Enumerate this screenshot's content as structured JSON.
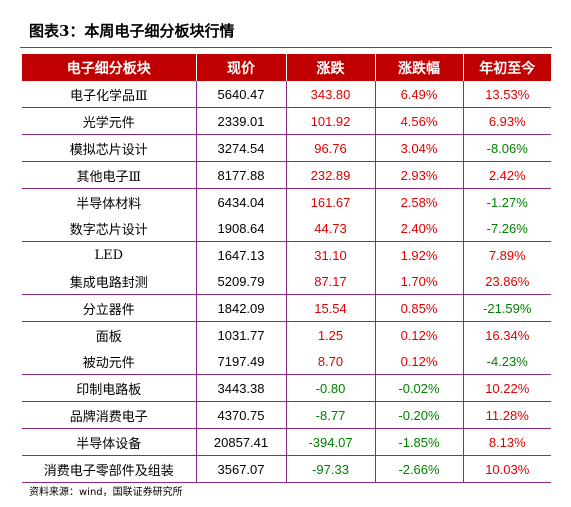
{
  "title": "图表3：本周电子细分板块行情",
  "table": {
    "headers": [
      "电子细分板块",
      "现价",
      "涨跌",
      "涨跌幅",
      "年初至今"
    ],
    "rows": [
      {
        "name": "电子化学品Ⅲ",
        "price": "5640.47",
        "change": "343.80",
        "pct": "6.49%",
        "ytd": "13.53%"
      },
      {
        "name": "光学元件",
        "price": "2339.01",
        "change": "101.92",
        "pct": "4.56%",
        "ytd": "6.93%"
      },
      {
        "name": "模拟芯片设计",
        "price": "3274.54",
        "change": "96.76",
        "pct": "3.04%",
        "ytd": "-8.06%"
      },
      {
        "name": "其他电子Ⅲ",
        "price": "8177.88",
        "change": "232.89",
        "pct": "2.93%",
        "ytd": "2.42%"
      },
      {
        "name": "半导体材料",
        "price": "6434.04",
        "change": "161.67",
        "pct": "2.58%",
        "ytd": "-1.27%"
      },
      {
        "name": "数字芯片设计",
        "price": "1908.64",
        "change": "44.73",
        "pct": "2.40%",
        "ytd": "-7.26%"
      },
      {
        "name": "LED",
        "price": "1647.13",
        "change": "31.10",
        "pct": "1.92%",
        "ytd": "7.89%"
      },
      {
        "name": "集成电路封测",
        "price": "5209.79",
        "change": "87.17",
        "pct": "1.70%",
        "ytd": "23.86%"
      },
      {
        "name": "分立器件",
        "price": "1842.09",
        "change": "15.54",
        "pct": "0.85%",
        "ytd": "-21.59%"
      },
      {
        "name": "面板",
        "price": "1031.77",
        "change": "1.25",
        "pct": "0.12%",
        "ytd": "16.34%"
      },
      {
        "name": "被动元件",
        "price": "7197.49",
        "change": "8.70",
        "pct": "0.12%",
        "ytd": "-4.23%"
      },
      {
        "name": "印制电路板",
        "price": "3443.38",
        "change": "-0.80",
        "pct": "-0.02%",
        "ytd": "10.22%"
      },
      {
        "name": "品牌消费电子",
        "price": "4370.75",
        "change": "-8.77",
        "pct": "-0.20%",
        "ytd": "11.28%"
      },
      {
        "name": "半导体设备",
        "price": "20857.41",
        "change": "-394.07",
        "pct": "-1.85%",
        "ytd": "8.13%"
      },
      {
        "name": "消费电子零部件及组装",
        "price": "3567.07",
        "change": "-97.33",
        "pct": "-2.66%",
        "ytd": "10.03%"
      }
    ]
  },
  "source": "资料来源：wind，国联证券研究所",
  "colors": {
    "header_bg": "#c00000",
    "up": "#e00000",
    "down": "#008000",
    "rule": "#8b2a85"
  }
}
